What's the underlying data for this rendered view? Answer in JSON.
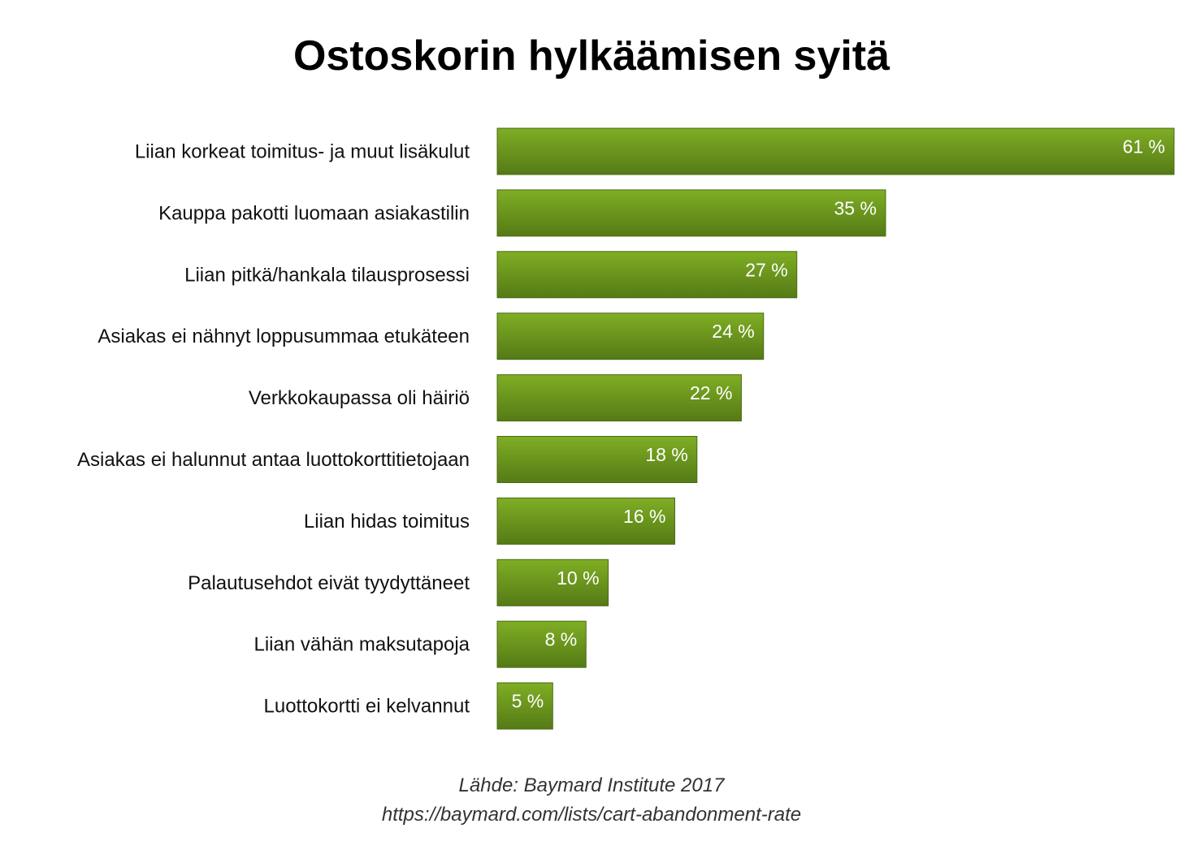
{
  "colors": {
    "bar_top": "#7fae24",
    "bar_bottom": "#557a16",
    "bar_edge": "#4a6a12",
    "label_text": "#111111",
    "value_text": "#ffffff"
  },
  "chart_data": {
    "type": "bar",
    "orientation": "horizontal",
    "title": "Ostoskorin hylkäämisen syitä",
    "categories": [
      "Liian korkeat toimitus- ja muut lisäkulut",
      "Kauppa pakotti luomaan asiakastilin",
      "Liian pitkä/hankala tilausprosessi",
      "Asiakas ei nähnyt loppusummaa etukäteen",
      "Verkkokaupassa oli häiriö",
      "Asiakas ei halunnut antaa luottokorttitietojaan",
      "Liian hidas toimitus",
      "Palautusehdot eivät tyydyttäneet",
      "Liian vähän maksutapoja",
      "Luottokortti ei kelvannut"
    ],
    "values": [
      61,
      35,
      27,
      24,
      22,
      18,
      16,
      10,
      8,
      5
    ],
    "value_labels": [
      "61 %",
      "35 %",
      "27 %",
      "24 %",
      "22 %",
      "18 %",
      "16 %",
      "10 %",
      "8 %",
      "5 %"
    ],
    "unit": "%",
    "xlim": [
      0,
      61
    ],
    "grid": false,
    "legend": "none"
  },
  "source": {
    "line1": "Lähde: Baymard Institute 2017",
    "line2": "https://baymard.com/lists/cart-abandonment-rate"
  }
}
